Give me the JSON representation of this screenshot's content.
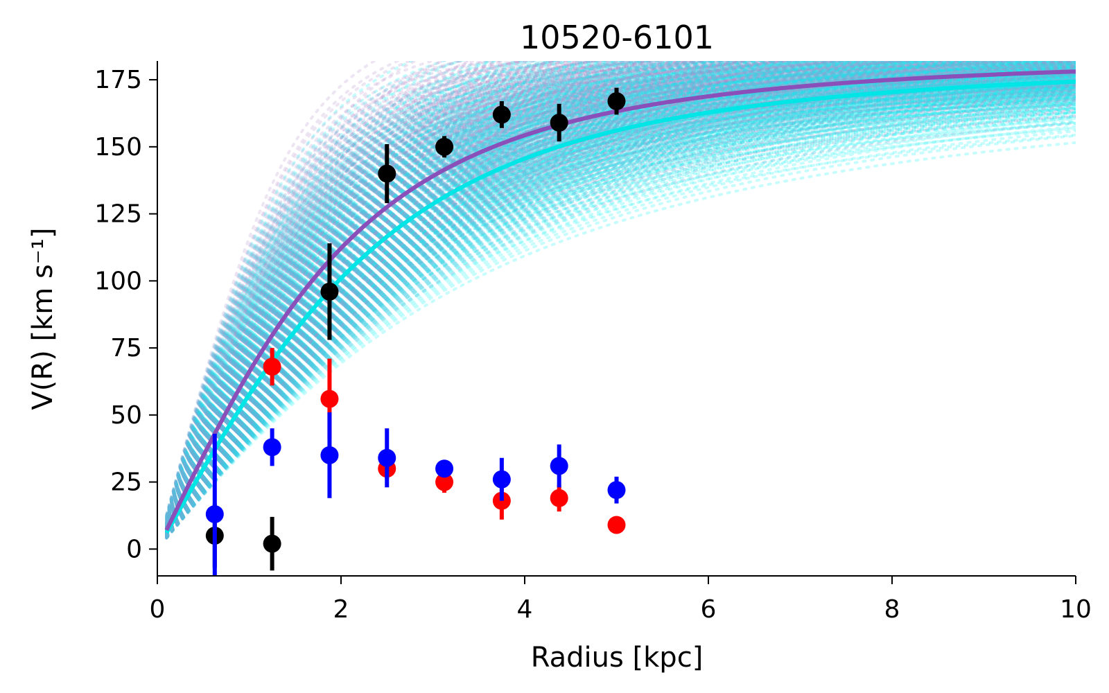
{
  "chart_data": {
    "type": "scatter",
    "title": "10520-6101",
    "xlabel": "Radius [kpc]",
    "ylabel": "V(R) [km s⁻¹]",
    "xlim": [
      0,
      10
    ],
    "ylim": [
      -10,
      182
    ],
    "x_ticks": [
      "0",
      "2",
      "4",
      "6",
      "8",
      "10"
    ],
    "y_ticks": [
      "0",
      "25",
      "50",
      "75",
      "100",
      "125",
      "150",
      "175"
    ],
    "grid": false,
    "legend": "none",
    "series": [
      {
        "color": "#000000",
        "points": [
          {
            "x": 0.625,
            "y": 5,
            "err": 12
          },
          {
            "x": 1.25,
            "y": 2,
            "err": 10
          },
          {
            "x": 1.875,
            "y": 96,
            "err": 18
          },
          {
            "x": 2.5,
            "y": 140,
            "err": 11
          },
          {
            "x": 3.125,
            "y": 150,
            "err": 4
          },
          {
            "x": 3.75,
            "y": 162,
            "err": 5
          },
          {
            "x": 4.375,
            "y": 159,
            "err": 7
          },
          {
            "x": 5.0,
            "y": 167,
            "err": 5
          }
        ]
      },
      {
        "color": "#ff0000",
        "points": [
          {
            "x": 1.25,
            "y": 68,
            "err": 7
          },
          {
            "x": 1.875,
            "y": 56,
            "err": 15
          },
          {
            "x": 2.5,
            "y": 30,
            "err": 4
          },
          {
            "x": 3.125,
            "y": 25,
            "err": 4
          },
          {
            "x": 3.75,
            "y": 18,
            "err": 7
          },
          {
            "x": 4.375,
            "y": 19,
            "err": 5
          },
          {
            "x": 5.0,
            "y": 9,
            "err": 3
          }
        ]
      },
      {
        "color": "#0000ff",
        "points": [
          {
            "x": 0.625,
            "y": 13,
            "err": 30
          },
          {
            "x": 1.25,
            "y": 38,
            "err": 7
          },
          {
            "x": 1.875,
            "y": 35,
            "err": 16
          },
          {
            "x": 2.5,
            "y": 34,
            "err": 11
          },
          {
            "x": 3.125,
            "y": 30,
            "err": 3
          },
          {
            "x": 3.75,
            "y": 26,
            "err": 8
          },
          {
            "x": 4.375,
            "y": 31,
            "err": 8
          },
          {
            "x": 5.0,
            "y": 22,
            "err": 5
          }
        ]
      }
    ],
    "model_curves": {
      "primary": {
        "color": "#8a4fb8",
        "vmax": 184,
        "rt": 2.6,
        "a": 2.0
      },
      "secondary": {
        "color": "#00e5e5",
        "vmax": 182,
        "rt": 3.0,
        "a": 2.0
      },
      "samples": {
        "colors": [
          "#00f0f0",
          "#b088c8"
        ],
        "vmax": [
          175,
          178,
          180,
          182,
          184,
          186,
          188,
          190,
          192,
          195,
          198,
          200,
          205
        ],
        "rt": [
          1.6,
          1.9,
          2.1,
          2.3,
          2.5,
          2.7,
          2.9,
          3.1,
          3.3,
          3.6,
          3.9,
          4.3
        ],
        "a": [
          1.6,
          1.9,
          2.2,
          2.6
        ]
      }
    }
  }
}
